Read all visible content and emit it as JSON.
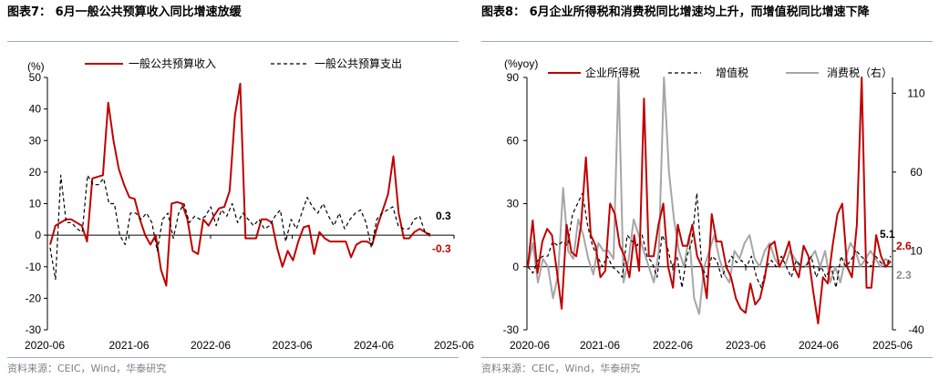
{
  "chart_data": [
    {
      "type": "line",
      "title": "图表7： 6月一般公共预算收入同比增速放缓",
      "ylabel": "(%)",
      "ylim": [
        -30,
        50
      ],
      "yticks": [
        50,
        40,
        30,
        20,
        10,
        0,
        -10,
        -20,
        -30
      ],
      "xticks": [
        "2020-06",
        "2021-06",
        "2022-06",
        "2023-06",
        "2024-06",
        "2025-06"
      ],
      "x_start": "2020-06",
      "x_end": "2025-06",
      "grid": false,
      "legend_position": "top",
      "series": [
        {
          "name": "一般公共预算收入",
          "color": "#c00000",
          "style": "solid",
          "values": [
            -3,
            3,
            4,
            5,
            5,
            4,
            3,
            -2,
            18,
            18.5,
            19,
            42,
            30,
            21,
            16,
            12,
            11.5,
            5,
            0,
            -3,
            0,
            -11,
            -16,
            10,
            10.5,
            10,
            5,
            -5,
            -6,
            5,
            3,
            6,
            8.5,
            9,
            14,
            38,
            48,
            -1,
            -1,
            -1,
            5,
            5,
            4,
            -4,
            -10,
            -5,
            -8,
            -2,
            2.5,
            3,
            -6,
            1,
            -1,
            -2,
            -2,
            -2,
            -2,
            -7,
            -3,
            -2,
            -2,
            -3,
            3,
            8,
            13,
            25,
            7,
            -1,
            -1,
            1,
            2,
            1,
            -0.3
          ],
          "end_label": "-0.3"
        },
        {
          "name": "一般公共预算支出",
          "color": "#000000",
          "style": "dashed",
          "values": [
            -4,
            -14,
            19,
            4,
            4,
            2,
            1,
            19,
            16,
            16,
            18,
            10,
            10,
            0,
            -3,
            7,
            7,
            5,
            7,
            4,
            -5,
            5,
            7,
            -1,
            7,
            10,
            4,
            6,
            5,
            6,
            9,
            3,
            8,
            6,
            10,
            4,
            7,
            5,
            3,
            5,
            2,
            3,
            6,
            8,
            -2,
            5,
            2,
            7,
            12,
            9,
            7,
            10,
            6,
            3,
            7,
            2,
            5,
            7,
            8,
            4,
            -4,
            5,
            7,
            8,
            9,
            3,
            2,
            2,
            5,
            6,
            1,
            0.3
          ],
          "end_label": "0.3"
        }
      ]
    },
    {
      "type": "line",
      "title": "图表8： 6月企业所得税和消费税同比增速均上升，而增值税同比增速下降",
      "ylabel": "(%yoy)",
      "ylim_left": [
        -30,
        90
      ],
      "yticks_left": [
        90,
        60,
        30,
        0,
        -30
      ],
      "ylim_right": [
        -40,
        120
      ],
      "yticks_right": [
        110,
        60,
        10,
        -40
      ],
      "xticks": [
        "2020-06",
        "2021-06",
        "2022-06",
        "2023-06",
        "2024-06",
        "2025-06"
      ],
      "x_start": "2020-06",
      "x_end": "2025-06",
      "grid": false,
      "legend_position": "top",
      "series": [
        {
          "name": "企业所得税",
          "color": "#c00000",
          "style": "solid",
          "axis": "left",
          "values": [
            0,
            22,
            -3,
            12,
            18,
            15,
            -2,
            -20,
            20,
            7,
            5,
            20,
            52,
            15,
            10,
            -5,
            -2,
            30,
            25,
            10,
            5,
            -5,
            15,
            -2,
            80,
            5,
            5,
            20,
            30,
            0,
            -10,
            20,
            10,
            10,
            20,
            5,
            0,
            -15,
            25,
            12,
            12,
            0,
            -5,
            -15,
            -20,
            -22,
            -8,
            -18,
            -15,
            -5,
            10,
            12,
            0,
            5,
            12,
            0,
            -5,
            10,
            5,
            -12,
            -27,
            -5,
            -8,
            10,
            25,
            30,
            0,
            -5,
            20,
            90,
            -10,
            -10,
            15,
            5,
            0,
            2.6
          ],
          "end_label": "2.6"
        },
        {
          "name": "增值税",
          "color": "#000000",
          "style": "dashed",
          "axis": "left",
          "values": [
            0,
            -3,
            3,
            5,
            5,
            12,
            10,
            12,
            10,
            25,
            30,
            35,
            20,
            10,
            5,
            0,
            5,
            0,
            -2,
            -5,
            15,
            12,
            10,
            15,
            5,
            2,
            -5,
            15,
            10,
            0,
            5,
            -10,
            5,
            12,
            35,
            0,
            -5,
            5,
            3,
            -5,
            0,
            5,
            2,
            3,
            0,
            5,
            -5,
            -10,
            0,
            3,
            0,
            5,
            0,
            -5,
            3,
            0,
            0,
            5,
            -5,
            0,
            -5,
            0,
            -10,
            5,
            0,
            3,
            8,
            5,
            3,
            0,
            5,
            2,
            0,
            5.1
          ],
          "end_label": "5.1"
        },
        {
          "name": "消费税（右）",
          "color": "#a6a6a6",
          "style": "solid",
          "axis": "right",
          "values": [
            0,
            15,
            -10,
            5,
            0,
            -20,
            -5,
            50,
            10,
            5,
            30,
            20,
            5,
            -5,
            15,
            10,
            10,
            5,
            120,
            -10,
            5,
            30,
            20,
            10,
            0,
            -10,
            10,
            120,
            60,
            30,
            10,
            0,
            20,
            -20,
            -30,
            0,
            10,
            20,
            5,
            -5,
            -10,
            10,
            5,
            15,
            20,
            5,
            0,
            10,
            15,
            5,
            0,
            0,
            10,
            5,
            0,
            0,
            5,
            10,
            0,
            10,
            -10,
            0,
            -10,
            5,
            15,
            10,
            0,
            5,
            10,
            5,
            0,
            5,
            2.3
          ],
          "end_label": "2.3"
        }
      ]
    }
  ],
  "sources": {
    "left": "资料来源：CEIC，Wind，华泰研究",
    "right": "资料来源：CEIC，Wind，华泰研究"
  }
}
